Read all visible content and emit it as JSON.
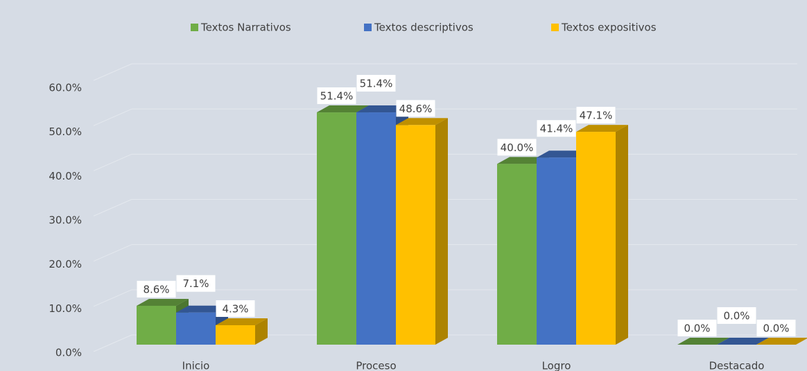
{
  "chart_data": {
    "type": "bar3d",
    "categories": [
      "Inicio",
      "Proceso",
      "Logro",
      "Destacado"
    ],
    "series": [
      {
        "name": "Textos Narrativos",
        "color": "#70ad47",
        "values": [
          8.6,
          51.4,
          40.0,
          0.0
        ],
        "value_labels": [
          "8.6%",
          "51.4%",
          "40.0%",
          "0.0%"
        ]
      },
      {
        "name": "Textos descriptivos",
        "color": "#4472c4",
        "values": [
          7.1,
          51.4,
          41.4,
          0.0
        ],
        "value_labels": [
          "7.1%",
          "51.4%",
          "41.4%",
          "0.0%"
        ]
      },
      {
        "name": "Textos expositivos",
        "color": "#ffc000",
        "values": [
          4.3,
          48.6,
          47.1,
          0.0
        ],
        "value_labels": [
          "4.3%",
          "48.6%",
          "47.1%",
          "0.0%"
        ]
      }
    ],
    "ylim": [
      0,
      60
    ],
    "yticks": [
      {
        "value": 0,
        "label": "0.0%"
      },
      {
        "value": 10,
        "label": "10.0%"
      },
      {
        "value": 20,
        "label": "20.0%"
      },
      {
        "value": 30,
        "label": "30.0%"
      },
      {
        "value": 40,
        "label": "40.0%"
      },
      {
        "value": 50,
        "label": "50.0%"
      },
      {
        "value": 60,
        "label": "60.0%"
      }
    ],
    "grid": true,
    "legend": "top"
  }
}
